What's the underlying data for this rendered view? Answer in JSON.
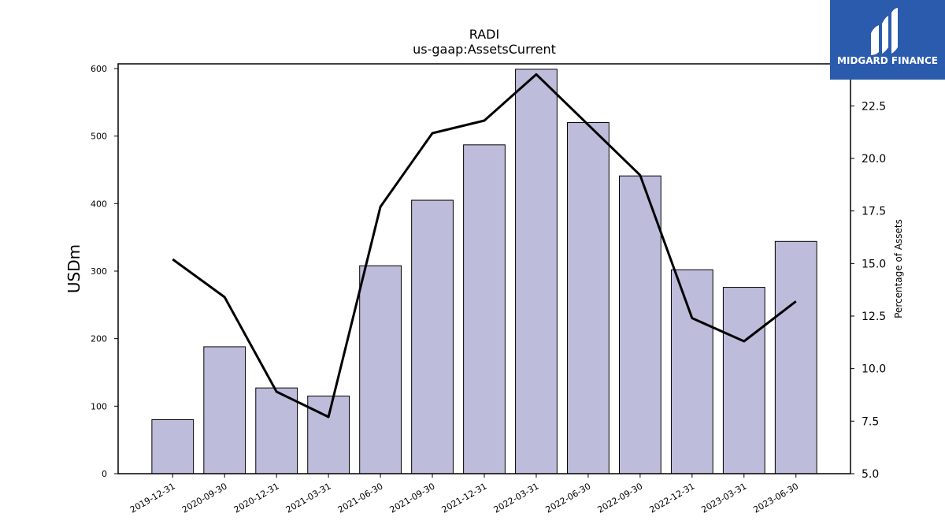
{
  "chart_data": {
    "type": "bar",
    "title": "RADI",
    "subtitle": "us-gaap:AssetsCurrent",
    "ylabel": "USDm",
    "y2label": "Percentage of Assets",
    "categories": [
      "2019-12-31",
      "2020-09-30",
      "2020-12-31",
      "2021-03-31",
      "2021-06-30",
      "2021-09-30",
      "2021-12-31",
      "2022-03-31",
      "2022-06-30",
      "2022-09-30",
      "2022-12-31",
      "2023-03-31",
      "2023-06-30"
    ],
    "series": [
      {
        "type": "bar",
        "axis": "left",
        "values": [
          80,
          188,
          127,
          115,
          308,
          405,
          487,
          599,
          520,
          441,
          302,
          276,
          344
        ]
      },
      {
        "type": "line",
        "axis": "right",
        "values": [
          15.2,
          13.4,
          8.9,
          7.7,
          17.7,
          21.2,
          21.8,
          24.0,
          21.6,
          19.2,
          12.4,
          11.3,
          13.2
        ]
      }
    ],
    "ylim": [
      0,
      607
    ],
    "y2lim": [
      5.0,
      24.5
    ],
    "yticks": [
      0,
      100,
      200,
      300,
      400,
      500,
      600
    ],
    "y2ticks": [
      "5.0",
      "7.5",
      "10.0",
      "12.5",
      "15.0",
      "17.5",
      "20.0",
      "22.5"
    ],
    "bar_color": "#bebcdb",
    "line_color": "#000000",
    "grid": false
  },
  "logo": {
    "text": "MIDGARD FINANCE",
    "background": "#2b5bad"
  }
}
